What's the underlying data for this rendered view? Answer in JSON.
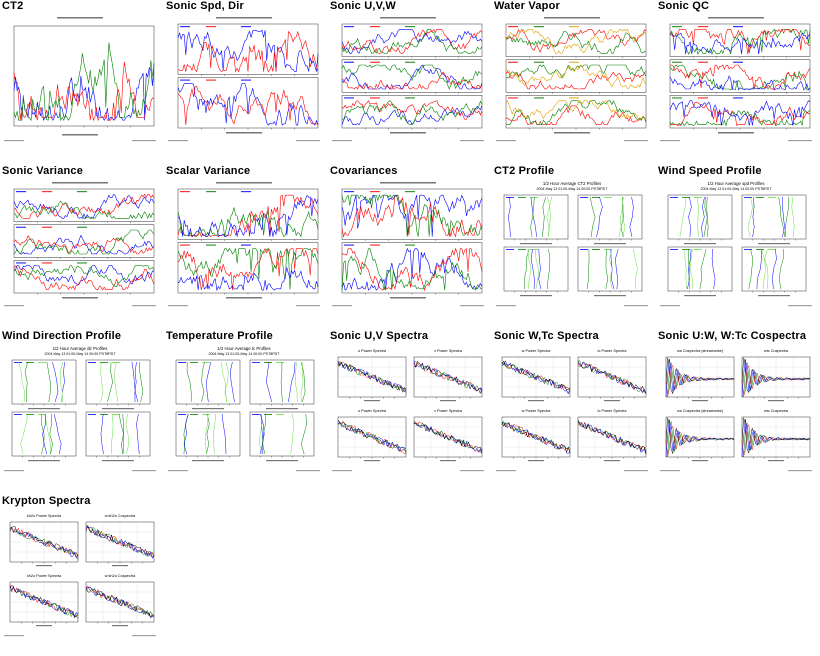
{
  "thumbnails": [
    {
      "title": "CT2",
      "kind": "single",
      "colors": [
        "#0000ff",
        "#ff0000",
        "#008000"
      ]
    },
    {
      "title": "Sonic Spd, Dir",
      "kind": "stack2",
      "colors": [
        "#0000ff",
        "#ff0000"
      ]
    },
    {
      "title": "Sonic U,V,W",
      "kind": "stack3",
      "colors": [
        "#0000ff",
        "#ff0000",
        "#008000"
      ]
    },
    {
      "title": "Water Vapor",
      "kind": "stack3",
      "colors": [
        "#ff0000",
        "#008000",
        "#e0a000",
        "#0000ff"
      ]
    },
    {
      "title": "Sonic QC",
      "kind": "stack3",
      "colors": [
        "#008000",
        "#ff0000",
        "#0000ff"
      ]
    },
    {
      "title": "Sonic Variance",
      "kind": "stack3",
      "colors": [
        "#0000ff",
        "#ff0000",
        "#008000"
      ]
    },
    {
      "title": "Scalar Variance",
      "kind": "stack2",
      "colors": [
        "#ff0000",
        "#008000",
        "#0000ff"
      ]
    },
    {
      "title": "Covariances",
      "kind": "stack2",
      "colors": [
        "#0000ff",
        "#ff0000",
        "#008000"
      ]
    },
    {
      "title": "CT2 Profile",
      "kind": "profile",
      "subtitle": "1/2 Hour Average CT2 Profiles",
      "subtitle2": "2004 May 13 01:00-May 14 00:00 PST8PDT",
      "colors": [
        "#0000ff",
        "#008000",
        "#66dd44"
      ]
    },
    {
      "title": "Wind Speed Profile",
      "kind": "profile",
      "subtitle": "1/2 Hour Average spd Profiles",
      "subtitle2": "2004 May 13 01:00-May 14 00:00 PST8PDT",
      "colors": [
        "#0000ff",
        "#008000",
        "#66dd44"
      ]
    },
    {
      "title": "Wind Direction Profile",
      "kind": "profile",
      "subtitle": "1/2 Hour Average dir Profiles",
      "subtitle2": "2004 May 13 01:00-May 14 00:00 PST8PDT",
      "colors": [
        "#0000ff",
        "#008000",
        "#66dd44"
      ]
    },
    {
      "title": "Temperature Profile",
      "kind": "profile",
      "subtitle": "1/2 Hour Average tc Profiles",
      "subtitle2": "2004 May 13 01:00-May 14 00:00 PST8PDT",
      "colors": [
        "#0000ff",
        "#008000",
        "#66dd44"
      ]
    },
    {
      "title": "Sonic U,V Spectra",
      "kind": "spectra",
      "panels": [
        "u Power Spectra",
        "v Power Spectra",
        "u Power Spectra",
        "v Power Spectra"
      ],
      "colors": [
        "#ff0000",
        "#008000",
        "#0000ff",
        "#000000"
      ]
    },
    {
      "title": "Sonic W,Tc Spectra",
      "kind": "spectra",
      "panels": [
        "w Power Spectra",
        "tc Power Spectra",
        "w Power Spectra",
        "tc Power Spectra"
      ],
      "colors": [
        "#ff0000",
        "#008000",
        "#0000ff",
        "#000000"
      ]
    },
    {
      "title": "Sonic U:W, W:Tc Cospectra",
      "kind": "cospectra",
      "panels": [
        "uw Cospectra (streamwise)",
        "wtc Cospectra",
        "uw Cospectra (streamwise)",
        "wtc Cospectra"
      ],
      "colors": [
        "#ff0000",
        "#008000",
        "#0000ff",
        "#000000"
      ]
    },
    {
      "title": "Krypton Spectra",
      "kind": "krypton",
      "panels": [
        "kh2o Power Spectra",
        "w:kh2o Cospectra",
        "kh2o Power Spectra",
        "w:kh2o Cospectra"
      ],
      "colors": [
        "#ff0000",
        "#008000",
        "#0000ff",
        "#000000"
      ]
    }
  ]
}
